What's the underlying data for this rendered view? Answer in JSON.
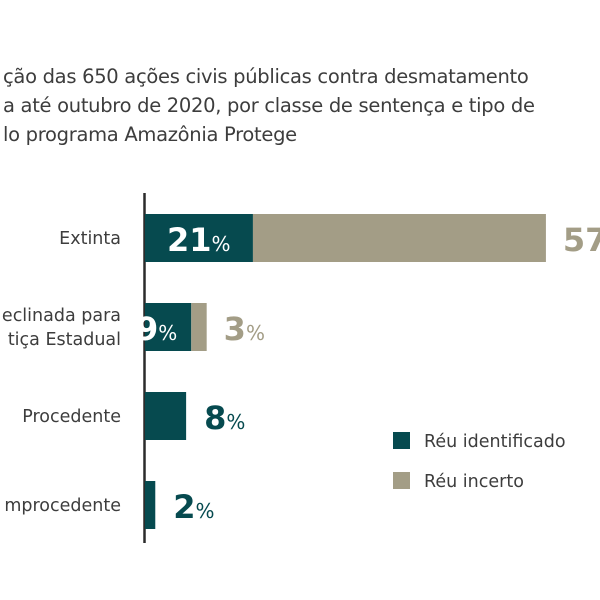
{
  "title_lines": [
    "ção das 650 ações civis públicas contra desmatamento",
    "a até outubro de 2020, por classe de sentença e tipo de",
    "lo programa Amazônia Protege"
  ],
  "colors": {
    "identified": "#064a4f",
    "uncertain": "#a39d86"
  },
  "chart_data": {
    "type": "bar",
    "orientation": "horizontal",
    "stacked": true,
    "categories": [
      [
        "Extinta"
      ],
      [
        "eclinada para",
        "tiça Estadual"
      ],
      [
        "Procedente"
      ],
      [
        "mprocedente"
      ]
    ],
    "series": [
      {
        "name": "Réu identificado",
        "values": [
          21,
          9,
          8,
          2
        ],
        "labels": [
          "21",
          "9",
          "8",
          "2"
        ]
      },
      {
        "name": "Réu incerto",
        "values": [
          57,
          3,
          0,
          0
        ],
        "labels": [
          "57",
          "3",
          "",
          ""
        ]
      }
    ],
    "unit": "%",
    "legend": "bottom-right",
    "grid": false
  }
}
